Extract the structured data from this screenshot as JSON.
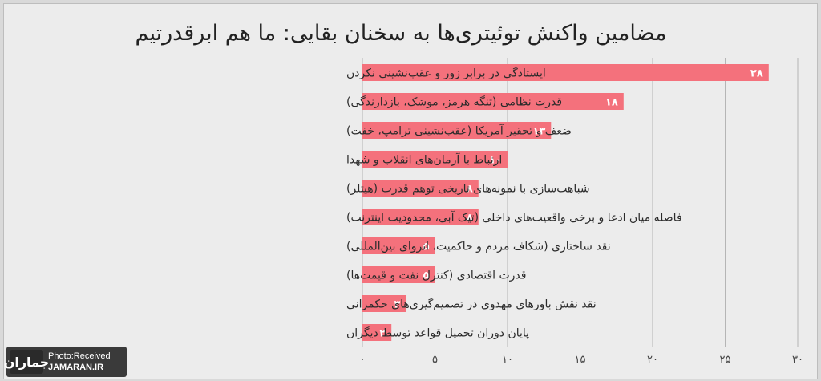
{
  "chart_data": {
    "type": "bar",
    "orientation": "horizontal",
    "title": "مضامین واکنش توئیتری‌ها به سخنان بقایی: ما هم ابرقدرتیم",
    "categories": [
      "ایستادگی در برابر زور و عقب‌نشینی نکردن",
      "قدرت نظامی (تنگه هرمز، موشک، بازدارندگی)",
      "ضعف و تحقیر آمریکا (عقب‌نشینی ترامپ، خفت)",
      "ارتباط با آرمان‌های انقلاب و شهدا",
      "شباهت‌سازی با نمونه‌های تاریخی توهم قدرت (هیتلر)",
      "فاصله میان ادعا و برخی واقعیت‌های داخلی (تیک آبی، محدودیت اینترنت)",
      "نقد ساختاری (شکاف مردم و حاکمیت، انزوای بین‌المللی)",
      "قدرت اقتصادی (کنترل نفت و قیمت‌ها)",
      "نقد نقش باورهای مهدوی در تصمیم‌گیری‌های حکمرانی",
      "پایان دوران تحمیل قواعد توسط دیگران"
    ],
    "values": [
      28,
      18,
      13,
      10,
      8,
      8,
      5,
      5,
      3,
      2
    ],
    "value_labels": [
      "۲۸",
      "۱۸",
      "۱۳",
      "۱۰",
      "۸",
      "۸",
      "۵",
      "۵",
      "۳",
      "۲"
    ],
    "x_ticks": [
      0,
      5,
      10,
      15,
      20,
      25,
      30
    ],
    "x_tick_labels": [
      "۰",
      "۵",
      "۱۰",
      "۱۵",
      "۲۰",
      "۲۵",
      "۳۰"
    ],
    "xlim": [
      0,
      30
    ],
    "grid": true,
    "colors": {
      "bar": "#f4717c",
      "grid": "#b5b5b5",
      "background": "#ececec"
    }
  },
  "watermark": {
    "logo_text": "جماران",
    "line1": "Photo:Received",
    "line2": "JAMARAN.IR"
  }
}
